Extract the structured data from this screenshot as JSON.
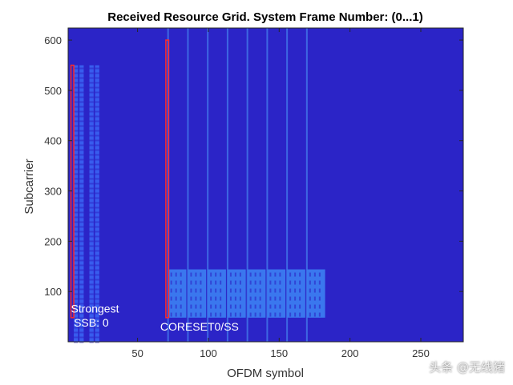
{
  "chart_data": {
    "type": "heatmap",
    "title": "Received Resource Grid. System Frame Number: (0...1)",
    "xlabel": "OFDM symbol",
    "ylabel": "Subcarrier",
    "xlim": [
      1,
      280
    ],
    "ylim": [
      0,
      624
    ],
    "xticks": [
      50,
      100,
      150,
      200,
      250
    ],
    "yticks": [
      100,
      200,
      300,
      400,
      500,
      600
    ],
    "grid": false,
    "colors": {
      "background": "#2b24c7",
      "ssb_burst": "#3a63f2",
      "pdcch_block": "#3b7cf0",
      "symbol_line": "#3f6fe6",
      "highlight_box": "#ff2a2a"
    },
    "ssb_bursts": [
      {
        "x0": 5,
        "x1": 8,
        "y0": 0,
        "y1": 550
      },
      {
        "x0": 9,
        "x1": 12,
        "y0": 0,
        "y1": 550
      },
      {
        "x0": 16,
        "x1": 19,
        "y0": 0,
        "y1": 550
      },
      {
        "x0": 20,
        "x1": 23,
        "y0": 0,
        "y1": 550
      }
    ],
    "symbol_lines": [
      71,
      85,
      99,
      113,
      127,
      141,
      155,
      169
    ],
    "pdcch_blocks": [
      {
        "x0": 71,
        "x1": 85,
        "y0": 48,
        "y1": 144
      },
      {
        "x0": 85,
        "x1": 99,
        "y0": 48,
        "y1": 144
      },
      {
        "x0": 99,
        "x1": 113,
        "y0": 48,
        "y1": 144
      },
      {
        "x0": 113,
        "x1": 127,
        "y0": 48,
        "y1": 144
      },
      {
        "x0": 127,
        "x1": 141,
        "y0": 48,
        "y1": 144
      },
      {
        "x0": 141,
        "x1": 155,
        "y0": 48,
        "y1": 144
      },
      {
        "x0": 155,
        "x1": 169,
        "y0": 48,
        "y1": 144
      },
      {
        "x0": 169,
        "x1": 183,
        "y0": 48,
        "y1": 144
      }
    ],
    "highlight_boxes": [
      {
        "x0": 3,
        "x1": 5,
        "y0": 48,
        "y1": 550
      },
      {
        "x0": 70,
        "x1": 72,
        "y0": 48,
        "y1": 600
      }
    ],
    "annotations": [
      {
        "text": "Strongest",
        "x": 3,
        "y": 58
      },
      {
        "text": "SSB: 0",
        "x": 5,
        "y": 30
      },
      {
        "text": "CORESET0/SS",
        "x": 66,
        "y": 22
      }
    ]
  },
  "watermark": "头条 @无线猪"
}
